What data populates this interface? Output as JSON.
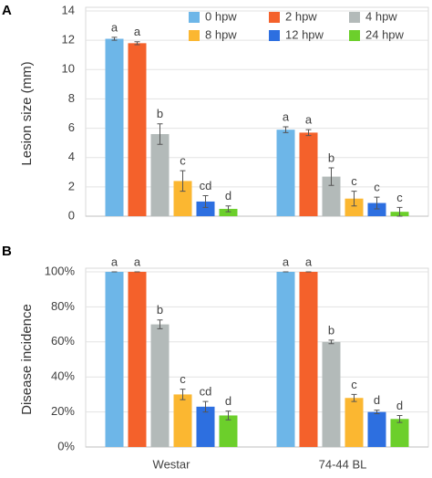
{
  "chart_data": [
    {
      "type": "bar",
      "panel_label": "A",
      "ylabel": "Lesion size (mm)",
      "categories": [
        null,
        null
      ],
      "ylim": [
        0,
        14
      ],
      "yticks": [
        0,
        2,
        4,
        6,
        8,
        10,
        12,
        14
      ],
      "grid": true,
      "legend": "top-right",
      "series": [
        {
          "name": "0 hpw",
          "color": "#6db6e8",
          "values": [
            12.1,
            5.9
          ],
          "errors": [
            0.1,
            0.2
          ],
          "annotations": [
            "a",
            "a"
          ]
        },
        {
          "name": "2 hpw",
          "color": "#f4612b",
          "values": [
            11.8,
            5.7
          ],
          "errors": [
            0.1,
            0.2
          ],
          "annotations": [
            "a",
            "a"
          ]
        },
        {
          "name": "4 hpw",
          "color": "#b3bab9",
          "values": [
            5.6,
            2.7
          ],
          "errors": [
            0.7,
            0.6
          ],
          "annotations": [
            "b",
            "b"
          ]
        },
        {
          "name": "8 hpw",
          "color": "#fbb731",
          "values": [
            2.4,
            1.2
          ],
          "errors": [
            0.7,
            0.5
          ],
          "annotations": [
            "c",
            "c"
          ]
        },
        {
          "name": "12 hpw",
          "color": "#2d6fe0",
          "values": [
            1.0,
            0.9
          ],
          "errors": [
            0.4,
            0.4
          ],
          "annotations": [
            "cd",
            "c"
          ]
        },
        {
          "name": "24 hpw",
          "color": "#6ccf2b",
          "values": [
            0.5,
            0.3
          ],
          "errors": [
            0.2,
            0.3
          ],
          "annotations": [
            "d",
            "c"
          ]
        }
      ]
    },
    {
      "type": "bar",
      "panel_label": "B",
      "ylabel": "Disease incidence",
      "categories": [
        "Westar",
        "74-44 BL"
      ],
      "ylim": [
        0,
        100
      ],
      "yticks": [
        {
          "value": 0,
          "label": "0%"
        },
        {
          "value": 20,
          "label": "20%"
        },
        {
          "value": 40,
          "label": "40%"
        },
        {
          "value": 60,
          "label": "60%"
        },
        {
          "value": 80,
          "label": "80%"
        },
        {
          "value": 100,
          "label": "100%"
        }
      ],
      "grid": true,
      "series": [
        {
          "color": "#6db6e8",
          "values": [
            100,
            100
          ],
          "errors": [
            0,
            0
          ],
          "annotations": [
            "a",
            "a"
          ]
        },
        {
          "color": "#f4612b",
          "values": [
            100,
            100
          ],
          "errors": [
            0,
            0
          ],
          "annotations": [
            "a",
            "a"
          ]
        },
        {
          "color": "#b3bab9",
          "values": [
            70,
            60
          ],
          "errors": [
            2.5,
            1
          ],
          "annotations": [
            "b",
            "b"
          ]
        },
        {
          "color": "#fbb731",
          "values": [
            30,
            28
          ],
          "errors": [
            3,
            2
          ],
          "annotations": [
            "c",
            "c"
          ]
        },
        {
          "color": "#2d6fe0",
          "values": [
            23,
            20
          ],
          "errors": [
            3,
            1
          ],
          "annotations": [
            "cd",
            "d"
          ]
        },
        {
          "color": "#6ccf2b",
          "values": [
            18,
            16
          ],
          "errors": [
            2.5,
            2
          ],
          "annotations": [
            "d",
            "d"
          ]
        }
      ]
    }
  ]
}
